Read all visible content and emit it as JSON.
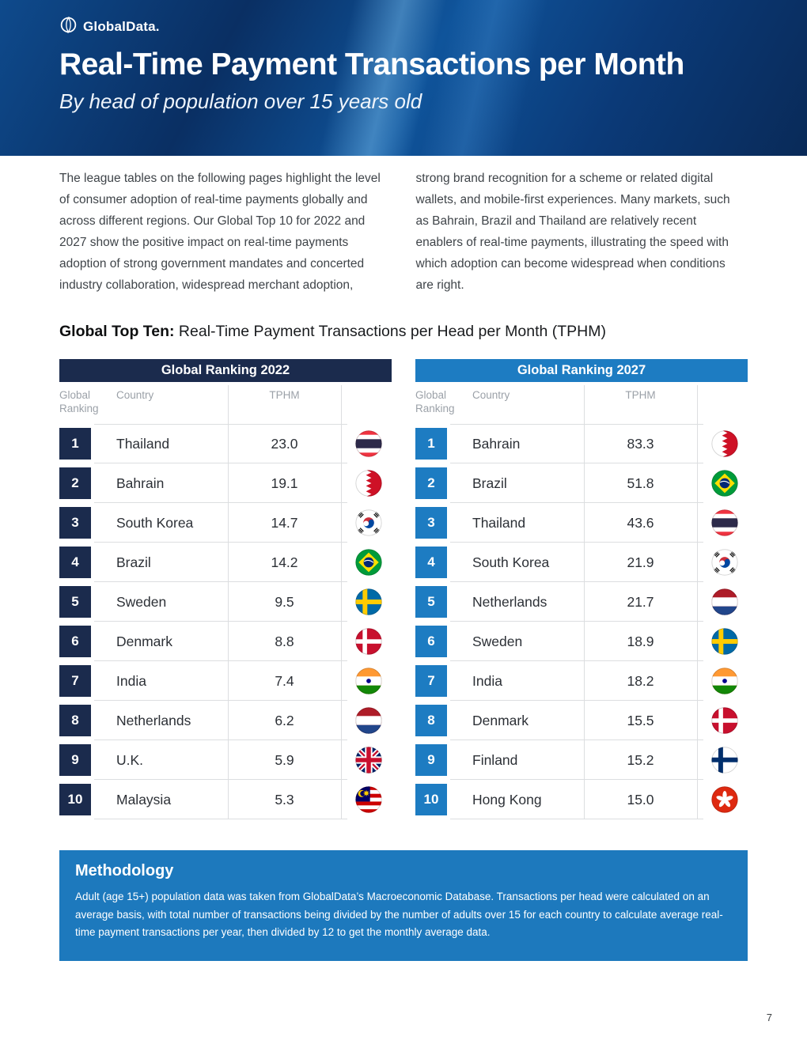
{
  "header": {
    "logo_text": "GlobalData.",
    "title": "Real-Time Payment Transactions per Month",
    "subtitle": "By head of population over 15 years old"
  },
  "intro": {
    "col1": "The league tables on the following pages highlight the level of consumer adoption of real-time payments globally and across different regions. Our Global Top 10 for 2022 and 2027 show the positive impact on real-time payments adoption of strong government mandates and concerted industry collaboration, widespread merchant adoption,",
    "col2": "strong brand recognition for a scheme or related digital wallets, and mobile-first experiences. Many markets, such as Bahrain, Brazil and Thailand are relatively recent enablers of real-time payments, illustrating the speed with which adoption can become widespread when conditions are right."
  },
  "section": {
    "heading_bold": "Global Top Ten:",
    "heading_rest": " Real-Time Payment Transactions per Head per Month (TPHM)"
  },
  "colors": {
    "navy": "#1b2b4d",
    "blue": "#1d7cc2",
    "methodology_blue": "#1d79bd"
  },
  "tables": [
    {
      "title": "Global Ranking 2022",
      "accent": "#1b2b4d",
      "columns": [
        "Global Ranking",
        "Country",
        "TPHM"
      ],
      "rows": [
        {
          "rank": "1",
          "country": "Thailand",
          "tphm": "23.0",
          "flag": "thailand"
        },
        {
          "rank": "2",
          "country": "Bahrain",
          "tphm": "19.1",
          "flag": "bahrain"
        },
        {
          "rank": "3",
          "country": "South Korea",
          "tphm": "14.7",
          "flag": "southkorea"
        },
        {
          "rank": "4",
          "country": "Brazil",
          "tphm": "14.2",
          "flag": "brazil"
        },
        {
          "rank": "5",
          "country": "Sweden",
          "tphm": "9.5",
          "flag": "sweden"
        },
        {
          "rank": "6",
          "country": "Denmark",
          "tphm": "8.8",
          "flag": "denmark"
        },
        {
          "rank": "7",
          "country": "India",
          "tphm": "7.4",
          "flag": "india"
        },
        {
          "rank": "8",
          "country": "Netherlands",
          "tphm": "6.2",
          "flag": "netherlands"
        },
        {
          "rank": "9",
          "country": "U.K.",
          "tphm": "5.9",
          "flag": "uk"
        },
        {
          "rank": "10",
          "country": "Malaysia",
          "tphm": "5.3",
          "flag": "malaysia"
        }
      ]
    },
    {
      "title": "Global Ranking 2027",
      "accent": "#1d7cc2",
      "columns": [
        "Global Ranking",
        "Country",
        "TPHM"
      ],
      "rows": [
        {
          "rank": "1",
          "country": "Bahrain",
          "tphm": "83.3",
          "flag": "bahrain"
        },
        {
          "rank": "2",
          "country": "Brazil",
          "tphm": "51.8",
          "flag": "brazil"
        },
        {
          "rank": "3",
          "country": "Thailand",
          "tphm": "43.6",
          "flag": "thailand"
        },
        {
          "rank": "4",
          "country": "South Korea",
          "tphm": "21.9",
          "flag": "southkorea"
        },
        {
          "rank": "5",
          "country": "Netherlands",
          "tphm": "21.7",
          "flag": "netherlands"
        },
        {
          "rank": "6",
          "country": "Sweden",
          "tphm": "18.9",
          "flag": "sweden"
        },
        {
          "rank": "7",
          "country": "India",
          "tphm": "18.2",
          "flag": "india"
        },
        {
          "rank": "8",
          "country": "Denmark",
          "tphm": "15.5",
          "flag": "denmark"
        },
        {
          "rank": "9",
          "country": "Finland",
          "tphm": "15.2",
          "flag": "finland"
        },
        {
          "rank": "10",
          "country": "Hong Kong",
          "tphm": "15.0",
          "flag": "hongkong"
        }
      ]
    }
  ],
  "methodology": {
    "title": "Methodology",
    "body": "Adult (age 15+) population data was taken from GlobalData’s Macroeconomic Database. Transactions per head were calculated on an average basis, with total number of transactions being divided by the number of adults over 15 for each country to calculate average real-time payment transactions per year, then divided by 12 to get the monthly average data."
  },
  "footer": {
    "page_number": "7"
  }
}
